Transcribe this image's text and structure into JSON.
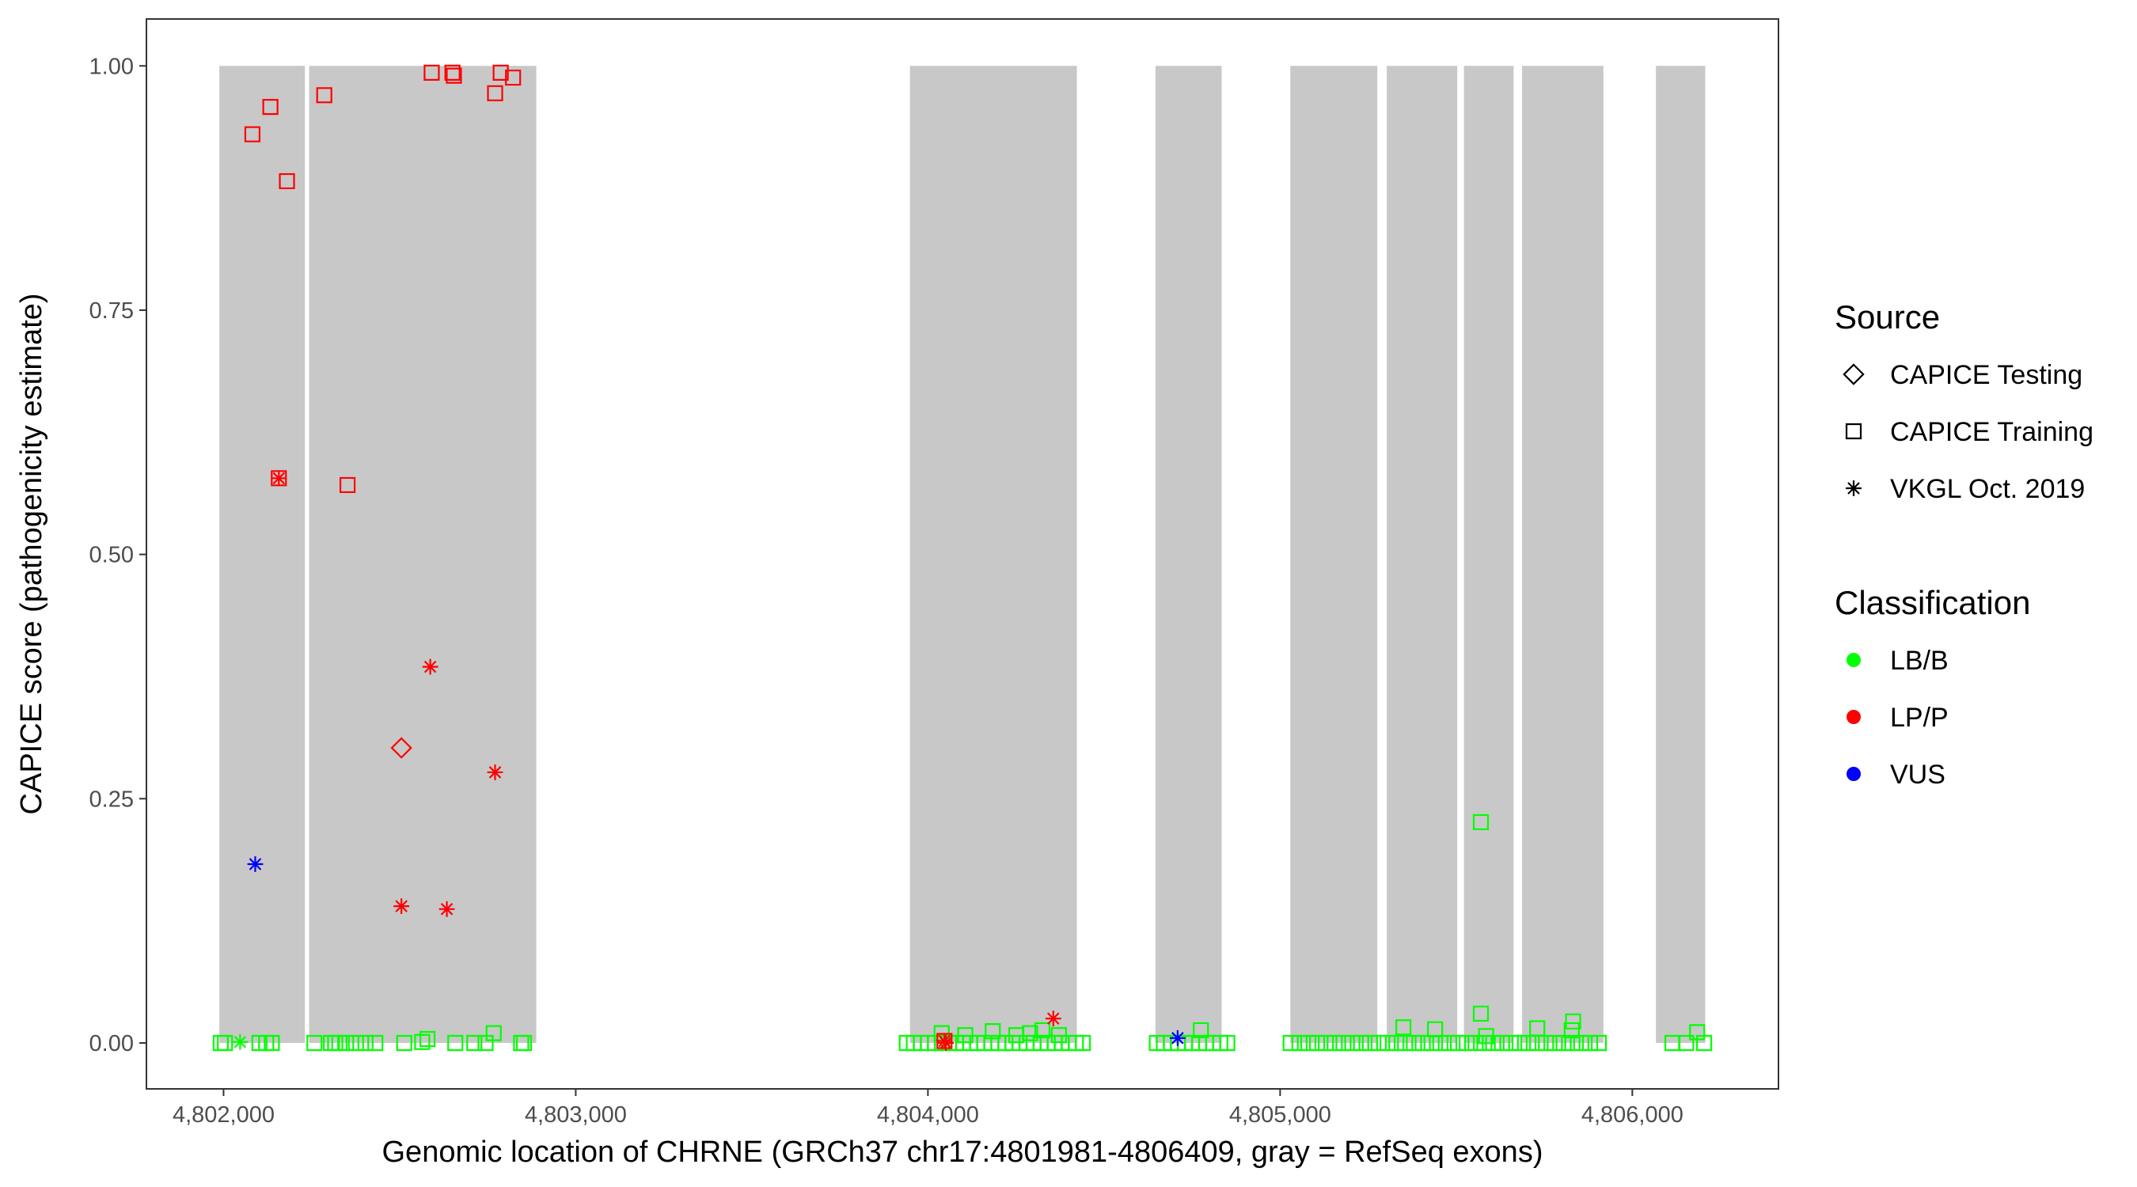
{
  "chart_data": {
    "type": "scatter",
    "x_label": "Genomic location of CHRNE (GRCh37 chr17:4801981-4806409, gray = RefSeq exons)",
    "y_label": "CAPICE score (pathogenicity estimate)",
    "xlim": [
      4801781,
      4806415
    ],
    "ylim": [
      -0.047,
      1.048
    ],
    "xticks": [
      {
        "value": 4802000,
        "label": "4,802,000"
      },
      {
        "value": 4803000,
        "label": "4,803,000"
      },
      {
        "value": 4804000,
        "label": "4,804,000"
      },
      {
        "value": 4805000,
        "label": "4,805,000"
      },
      {
        "value": 4806000,
        "label": "4,806,000"
      }
    ],
    "yticks": [
      {
        "value": 0,
        "label": "0.00"
      },
      {
        "value": 0.25,
        "label": "0.25"
      },
      {
        "value": 0.5,
        "label": "0.50"
      },
      {
        "value": 0.75,
        "label": "0.75"
      },
      {
        "value": 1,
        "label": "1.00"
      }
    ],
    "exon_color": "#c8c8c8",
    "exons": [
      [
        4801988,
        4802231
      ],
      [
        4802243,
        4802888
      ],
      [
        4803949,
        4804423
      ],
      [
        4804646,
        4804834
      ],
      [
        4805029,
        4805276
      ],
      [
        4805303,
        4805503
      ],
      [
        4805522,
        4805663
      ],
      [
        4805687,
        4805918
      ],
      [
        4806067,
        4806207
      ]
    ],
    "legends": [
      {
        "title": "Source",
        "items": [
          {
            "name": "CAPICE Testing",
            "shape": "diamond"
          },
          {
            "name": "CAPICE Training",
            "shape": "square"
          },
          {
            "name": "VKGL Oct. 2019",
            "shape": "asterisk"
          }
        ]
      },
      {
        "title": "Classification",
        "items": [
          {
            "name": "LB/B",
            "color": "#00ff00"
          },
          {
            "name": "LP/P",
            "color": "#ff0000"
          },
          {
            "name": "VUS",
            "color": "#0000ff"
          }
        ]
      }
    ],
    "series": [
      {
        "source": "CAPICE Training",
        "classification": "LB/B",
        "x": [
          4801992,
          4802004,
          4802102,
          4802121,
          4802137,
          4802258,
          4802305,
          4802317,
          4802329,
          4802348,
          4802376,
          4802403,
          4802431,
          4802513,
          4802564,
          4802579,
          4802658,
          4802712,
          4802744,
          4802767,
          4802845,
          4802853,
          4803940,
          4803960,
          4803980,
          4804000,
          4804020,
          4804040,
          4804060,
          4804080,
          4804100,
          4804120,
          4804140,
          4804160,
          4804180,
          4804200,
          4804220,
          4804240,
          4804260,
          4804280,
          4804300,
          4804320,
          4804340,
          4804360,
          4804380,
          4804400,
          4804420,
          4804440,
          4804039,
          4804106,
          4804184,
          4804251,
          4804290,
          4804325,
          4804372,
          4804650,
          4804670,
          4804690,
          4804710,
          4804730,
          4804750,
          4804770,
          4804790,
          4804810,
          4804830,
          4804850,
          4804775,
          4805030,
          4805055,
          4805080,
          4805105,
          4805130,
          4805155,
          4805180,
          4805205,
          4805230,
          4805255,
          4805280,
          4805305,
          4805330,
          4805355,
          4805380,
          4805405,
          4805430,
          4805455,
          4805480,
          4805505,
          4805530,
          4805555,
          4805580,
          4805605,
          4805630,
          4805655,
          4805680,
          4805705,
          4805730,
          4805755,
          4805780,
          4805805,
          4805830,
          4805855,
          4805880,
          4805905,
          4805350,
          4805440,
          4805570,
          4805570,
          4805585,
          4805730,
          4805828,
          4805832,
          4806114,
          4806153,
          4806184,
          4806204
        ],
        "values": [
          0,
          0,
          0,
          0,
          0,
          0,
          0,
          0,
          0,
          0,
          0,
          0,
          0,
          0,
          0.001,
          0.004,
          0,
          0,
          0,
          0.01,
          0,
          0,
          0,
          0,
          0,
          0,
          0,
          0,
          0,
          0,
          0,
          0,
          0,
          0,
          0,
          0,
          0,
          0,
          0,
          0,
          0,
          0,
          0,
          0,
          0,
          0,
          0,
          0,
          0.01,
          0.008,
          0.012,
          0.008,
          0.01,
          0.013,
          0.008,
          0,
          0,
          0,
          0,
          0,
          0,
          0,
          0,
          0,
          0,
          0,
          0.013,
          0,
          0,
          0,
          0,
          0,
          0,
          0,
          0,
          0,
          0,
          0,
          0,
          0,
          0,
          0,
          0,
          0,
          0,
          0,
          0,
          0,
          0,
          0,
          0,
          0,
          0,
          0,
          0,
          0,
          0,
          0,
          0,
          0,
          0,
          0,
          0,
          0.016,
          0.014,
          0.226,
          0.03,
          0.007,
          0.015,
          0.013,
          0.022,
          0,
          0,
          0.011,
          0
        ]
      },
      {
        "source": "VKGL Oct. 2019",
        "classification": "LB/B",
        "x": [
          4802047
        ],
        "values": [
          0.001
        ]
      },
      {
        "source": "CAPICE Training",
        "classification": "LP/P",
        "x": [
          4802082,
          4802133,
          4802180,
          4802286,
          4802352,
          4802591,
          4802650,
          4802654,
          4802771,
          4802787,
          4802822,
          4802157,
          4804047
        ],
        "values": [
          0.93,
          0.958,
          0.882,
          0.97,
          0.571,
          0.993,
          0.993,
          0.99,
          0.972,
          0.993,
          0.988,
          0.578,
          0.002
        ]
      },
      {
        "source": "CAPICE Testing",
        "classification": "LP/P",
        "x": [
          4802505
        ],
        "values": [
          0.302
        ]
      },
      {
        "source": "VKGL Oct. 2019",
        "classification": "LP/P",
        "x": [
          4802157,
          4802587,
          4802505,
          4802634,
          4802771,
          4804047,
          4804356,
          4804051
        ],
        "values": [
          0.578,
          0.385,
          0.14,
          0.137,
          0.277,
          0.002,
          0.025,
          0.0
        ]
      },
      {
        "source": "VKGL Oct. 2019",
        "classification": "VUS",
        "x": [
          4802090,
          4804709
        ],
        "values": [
          0.183,
          0.005
        ]
      }
    ]
  }
}
